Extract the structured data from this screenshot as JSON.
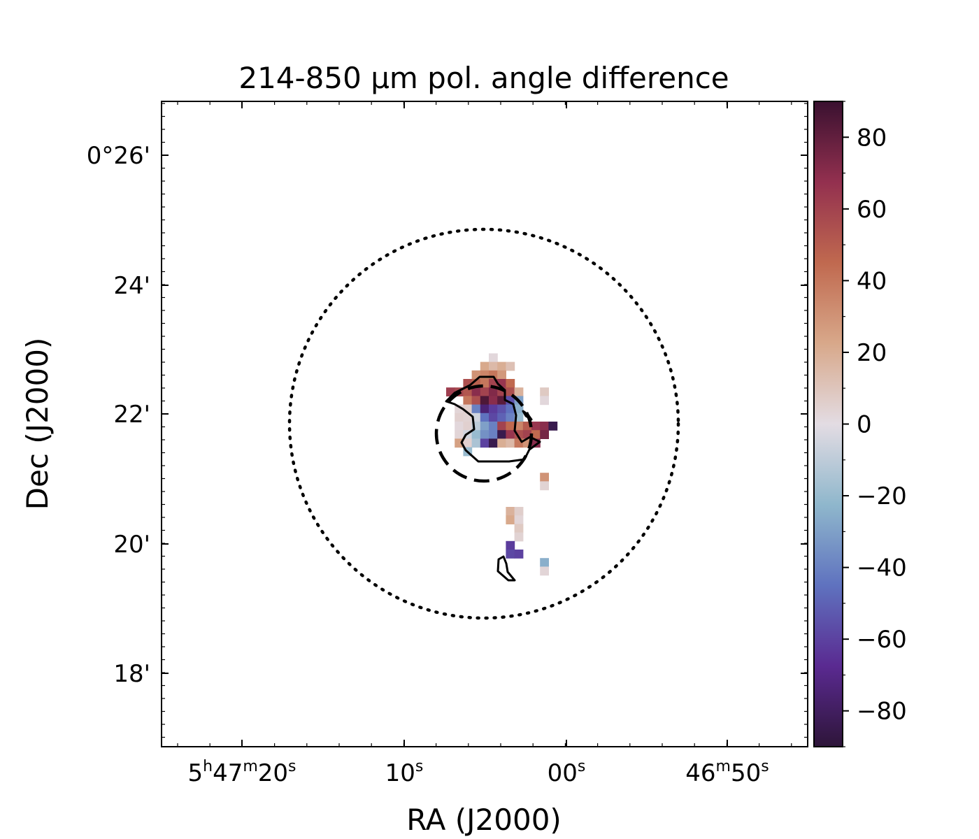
{
  "chart_data": {
    "type": "heatmap",
    "title": "214-850 μm pol. angle difference",
    "xlabel": "RA (J2000)",
    "ylabel": "Dec (J2000)",
    "x_ticks": [
      {
        "h": "5",
        "hs": "h",
        "m": "47",
        "ms": "m",
        "s": "20",
        "ss": "s"
      },
      {
        "s": "10",
        "ss": "s"
      },
      {
        "s": "00",
        "ss": "s"
      },
      {
        "m": "46",
        "ms": "m",
        "s": "50",
        "ss": "s"
      }
    ],
    "y_ticks": [
      "0°26'",
      "24'",
      "22'",
      "20'",
      "18'"
    ],
    "colorbar": {
      "min": -90,
      "max": 90,
      "ticks": [
        "80",
        "60",
        "40",
        "20",
        "0",
        "−20",
        "−40",
        "−60",
        "−80"
      ],
      "colormap": "twilight_shifted",
      "colors": [
        "#2e1539",
        "#5a2a91",
        "#5f72bf",
        "#8fb7cc",
        "#e3dce3",
        "#d8a88a",
        "#c0694f",
        "#93304f",
        "#3a1130"
      ]
    },
    "pixels": [
      {
        "c": 5,
        "r": -8,
        "v": 2
      },
      {
        "c": 4,
        "r": -7,
        "v": 22
      },
      {
        "c": 5,
        "r": -7,
        "v": 15
      },
      {
        "c": 6,
        "r": -7,
        "v": 20
      },
      {
        "c": 7,
        "r": -7,
        "v": 12
      },
      {
        "c": 3,
        "r": -6,
        "v": 30
      },
      {
        "c": 4,
        "r": -6,
        "v": 35
      },
      {
        "c": 5,
        "r": -6,
        "v": 40
      },
      {
        "c": 6,
        "r": -6,
        "v": 28
      },
      {
        "c": 2,
        "r": -5,
        "v": 55
      },
      {
        "c": 3,
        "r": -5,
        "v": 48
      },
      {
        "c": 4,
        "r": -5,
        "v": 40
      },
      {
        "c": 5,
        "r": -5,
        "v": 60
      },
      {
        "c": 6,
        "r": -5,
        "v": 65
      },
      {
        "c": 7,
        "r": -5,
        "v": 45
      },
      {
        "c": 0,
        "r": -4,
        "v": 62
      },
      {
        "c": 1,
        "r": -4,
        "v": 58
      },
      {
        "c": 2,
        "r": -4,
        "v": 52
      },
      {
        "c": 3,
        "r": -4,
        "v": 70
      },
      {
        "c": 4,
        "r": -4,
        "v": 60
      },
      {
        "c": 5,
        "r": -4,
        "v": 72
      },
      {
        "c": 6,
        "r": -4,
        "v": 60
      },
      {
        "c": 7,
        "r": -4,
        "v": 55
      },
      {
        "c": 8,
        "r": -4,
        "v": 18
      },
      {
        "c": 11,
        "r": -4,
        "v": 8
      },
      {
        "c": 2,
        "r": -3,
        "v": 40
      },
      {
        "c": 3,
        "r": -3,
        "v": 55
      },
      {
        "c": 4,
        "r": -3,
        "v": 85
      },
      {
        "c": 5,
        "r": -3,
        "v": 70
      },
      {
        "c": 6,
        "r": -3,
        "v": 82
      },
      {
        "c": 7,
        "r": -3,
        "v": -55
      },
      {
        "c": 8,
        "r": -3,
        "v": -30
      },
      {
        "c": 11,
        "r": -3,
        "v": 2
      },
      {
        "c": 1,
        "r": -2,
        "v": 3
      },
      {
        "c": 2,
        "r": -2,
        "v": 6
      },
      {
        "c": 3,
        "r": -2,
        "v": -40
      },
      {
        "c": 4,
        "r": -2,
        "v": -75
      },
      {
        "c": 5,
        "r": -2,
        "v": -62
      },
      {
        "c": 6,
        "r": -2,
        "v": -55
      },
      {
        "c": 7,
        "r": -2,
        "v": -45
      },
      {
        "c": 8,
        "r": -2,
        "v": -25
      },
      {
        "c": 1,
        "r": -1,
        "v": 5
      },
      {
        "c": 2,
        "r": -1,
        "v": 4
      },
      {
        "c": 3,
        "r": -1,
        "v": -5
      },
      {
        "c": 4,
        "r": -1,
        "v": -45
      },
      {
        "c": 5,
        "r": -1,
        "v": -58
      },
      {
        "c": 6,
        "r": -1,
        "v": -50
      },
      {
        "c": 7,
        "r": -1,
        "v": -40
      },
      {
        "c": 8,
        "r": -1,
        "v": -20
      },
      {
        "c": 1,
        "r": 0,
        "v": 2
      },
      {
        "c": 2,
        "r": 0,
        "v": 5
      },
      {
        "c": 3,
        "r": 0,
        "v": -10
      },
      {
        "c": 4,
        "r": 0,
        "v": -30
      },
      {
        "c": 5,
        "r": 0,
        "v": -40
      },
      {
        "c": 6,
        "r": 0,
        "v": 60
      },
      {
        "c": 7,
        "r": 0,
        "v": 45
      },
      {
        "c": 8,
        "r": 0,
        "v": 35
      },
      {
        "c": 9,
        "r": 0,
        "v": 50
      },
      {
        "c": 10,
        "r": 0,
        "v": 65
      },
      {
        "c": 11,
        "r": 0,
        "v": 70
      },
      {
        "c": 12,
        "r": 0,
        "v": -85
      },
      {
        "c": 1,
        "r": 1,
        "v": 3
      },
      {
        "c": 2,
        "r": 1,
        "v": -5
      },
      {
        "c": 3,
        "r": 1,
        "v": -20
      },
      {
        "c": 4,
        "r": 1,
        "v": -35
      },
      {
        "c": 5,
        "r": 1,
        "v": -40
      },
      {
        "c": 6,
        "r": 1,
        "v": -85
      },
      {
        "c": 7,
        "r": 1,
        "v": 65
      },
      {
        "c": 8,
        "r": 1,
        "v": 55
      },
      {
        "c": 9,
        "r": 1,
        "v": 60
      },
      {
        "c": 10,
        "r": 1,
        "v": 45
      },
      {
        "c": 11,
        "r": 1,
        "v": 75
      },
      {
        "c": 1,
        "r": 2,
        "v": 25
      },
      {
        "c": 2,
        "r": 2,
        "v": 5
      },
      {
        "c": 3,
        "r": 2,
        "v": -15
      },
      {
        "c": 4,
        "r": 2,
        "v": -60
      },
      {
        "c": 5,
        "r": 2,
        "v": -85
      },
      {
        "c": 6,
        "r": 2,
        "v": 20
      },
      {
        "c": 7,
        "r": 2,
        "v": 15
      },
      {
        "c": 8,
        "r": 2,
        "v": 40
      },
      {
        "c": 9,
        "r": 2,
        "v": 30
      },
      {
        "c": 10,
        "r": 2,
        "v": 70
      },
      {
        "c": 2,
        "r": 3,
        "v": -20
      },
      {
        "c": 11,
        "r": 6,
        "v": 30
      },
      {
        "c": 11,
        "r": 7,
        "v": 4
      },
      {
        "c": 7,
        "r": 10,
        "v": 18
      },
      {
        "c": 8,
        "r": 10,
        "v": 6
      },
      {
        "c": 7,
        "r": 11,
        "v": 22
      },
      {
        "c": 8,
        "r": 11,
        "v": 3
      },
      {
        "c": 8,
        "r": 12,
        "v": 8
      },
      {
        "c": 8,
        "r": 13,
        "v": 4
      },
      {
        "c": 7,
        "r": 14,
        "v": -62
      },
      {
        "c": 7,
        "r": 15,
        "v": -58
      },
      {
        "c": 8,
        "r": 15,
        "v": -60
      },
      {
        "c": 11,
        "r": 16,
        "v": -25
      },
      {
        "c": 11,
        "r": 17,
        "v": 3
      }
    ]
  }
}
